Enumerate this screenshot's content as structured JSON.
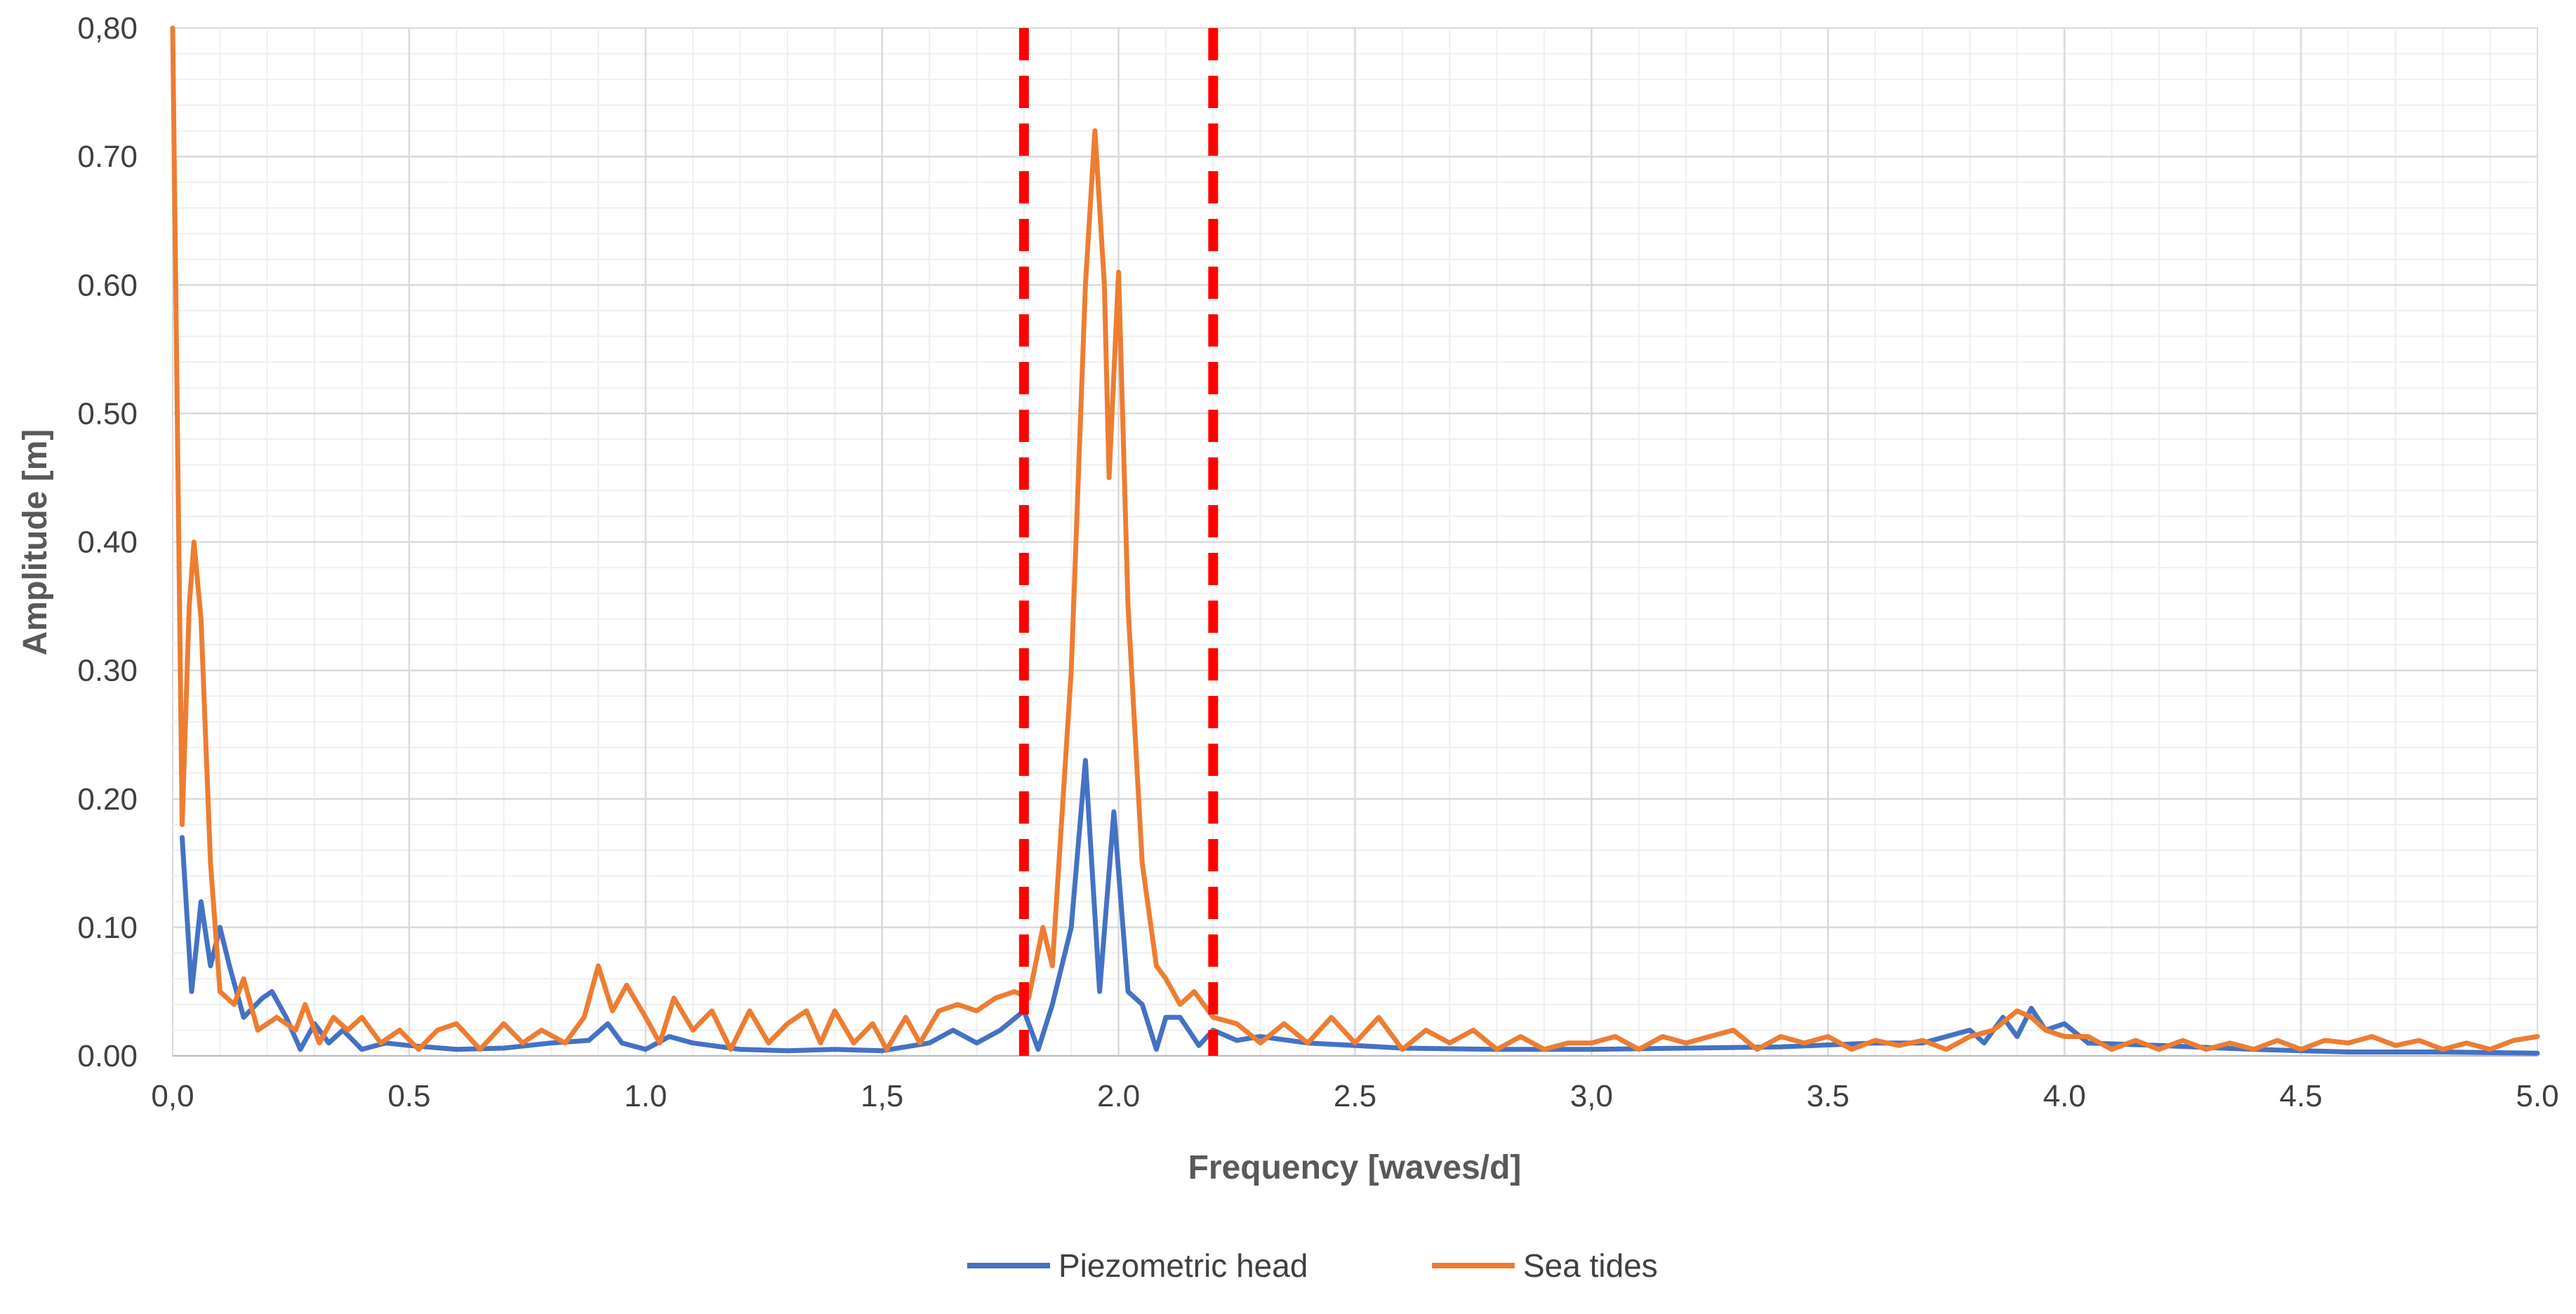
{
  "chart_data": {
    "type": "line",
    "title": "",
    "xlabel": "Frequency [waves/d]",
    "ylabel": "Amplitude [m]",
    "xlim": [
      0,
      5
    ],
    "ylim": [
      0,
      0.8
    ],
    "x_ticks": [
      "0,0",
      "0.5",
      "1.0",
      "1,5",
      "2.0",
      "2.5",
      "3,0",
      "3.5",
      "4.0",
      "4.5",
      "5.0"
    ],
    "y_ticks": [
      "0.00",
      "0.10",
      "0.20",
      "0.30",
      "0.40",
      "0.50",
      "0.60",
      "0.70",
      "0,80"
    ],
    "grid": true,
    "legend_position": "bottom",
    "reference_lines": {
      "x": [
        1.8,
        2.2
      ],
      "style": "dashed",
      "color": "#ff0000"
    },
    "series": [
      {
        "name": "Piezometric head",
        "color": "#4472c4",
        "points": [
          [
            0.02,
            0.17
          ],
          [
            0.04,
            0.05
          ],
          [
            0.06,
            0.12
          ],
          [
            0.08,
            0.07
          ],
          [
            0.1,
            0.1
          ],
          [
            0.12,
            0.07
          ],
          [
            0.15,
            0.03
          ],
          [
            0.19,
            0.045
          ],
          [
            0.21,
            0.05
          ],
          [
            0.24,
            0.03
          ],
          [
            0.27,
            0.005
          ],
          [
            0.3,
            0.025
          ],
          [
            0.33,
            0.01
          ],
          [
            0.36,
            0.02
          ],
          [
            0.4,
            0.005
          ],
          [
            0.45,
            0.01
          ],
          [
            0.5,
            0.008
          ],
          [
            0.6,
            0.005
          ],
          [
            0.7,
            0.006
          ],
          [
            0.8,
            0.01
          ],
          [
            0.88,
            0.012
          ],
          [
            0.92,
            0.025
          ],
          [
            0.95,
            0.01
          ],
          [
            1.0,
            0.005
          ],
          [
            1.05,
            0.015
          ],
          [
            1.1,
            0.01
          ],
          [
            1.2,
            0.005
          ],
          [
            1.3,
            0.004
          ],
          [
            1.4,
            0.005
          ],
          [
            1.5,
            0.004
          ],
          [
            1.6,
            0.01
          ],
          [
            1.65,
            0.02
          ],
          [
            1.7,
            0.01
          ],
          [
            1.75,
            0.02
          ],
          [
            1.8,
            0.035
          ],
          [
            1.83,
            0.005
          ],
          [
            1.86,
            0.04
          ],
          [
            1.9,
            0.1
          ],
          [
            1.93,
            0.23
          ],
          [
            1.96,
            0.05
          ],
          [
            1.99,
            0.19
          ],
          [
            2.02,
            0.05
          ],
          [
            2.05,
            0.04
          ],
          [
            2.08,
            0.005
          ],
          [
            2.1,
            0.03
          ],
          [
            2.13,
            0.03
          ],
          [
            2.17,
            0.008
          ],
          [
            2.2,
            0.02
          ],
          [
            2.25,
            0.012
          ],
          [
            2.3,
            0.015
          ],
          [
            2.4,
            0.01
          ],
          [
            2.5,
            0.008
          ],
          [
            2.6,
            0.006
          ],
          [
            2.8,
            0.005
          ],
          [
            3.0,
            0.005
          ],
          [
            3.2,
            0.006
          ],
          [
            3.4,
            0.007
          ],
          [
            3.6,
            0.01
          ],
          [
            3.7,
            0.01
          ],
          [
            3.8,
            0.02
          ],
          [
            3.83,
            0.01
          ],
          [
            3.87,
            0.03
          ],
          [
            3.9,
            0.015
          ],
          [
            3.93,
            0.037
          ],
          [
            3.96,
            0.02
          ],
          [
            4.0,
            0.025
          ],
          [
            4.05,
            0.01
          ],
          [
            4.2,
            0.008
          ],
          [
            4.4,
            0.005
          ],
          [
            4.6,
            0.003
          ],
          [
            4.8,
            0.003
          ],
          [
            5.0,
            0.002
          ]
        ]
      },
      {
        "name": "Sea tides",
        "color": "#ed7d31",
        "points": [
          [
            0.0,
            0.8
          ],
          [
            0.02,
            0.18
          ],
          [
            0.035,
            0.35
          ],
          [
            0.045,
            0.4
          ],
          [
            0.06,
            0.34
          ],
          [
            0.08,
            0.15
          ],
          [
            0.1,
            0.05
          ],
          [
            0.13,
            0.04
          ],
          [
            0.15,
            0.06
          ],
          [
            0.18,
            0.02
          ],
          [
            0.22,
            0.03
          ],
          [
            0.26,
            0.02
          ],
          [
            0.28,
            0.04
          ],
          [
            0.31,
            0.01
          ],
          [
            0.34,
            0.03
          ],
          [
            0.37,
            0.02
          ],
          [
            0.4,
            0.03
          ],
          [
            0.44,
            0.01
          ],
          [
            0.48,
            0.02
          ],
          [
            0.52,
            0.005
          ],
          [
            0.56,
            0.02
          ],
          [
            0.6,
            0.025
          ],
          [
            0.65,
            0.005
          ],
          [
            0.7,
            0.025
          ],
          [
            0.74,
            0.01
          ],
          [
            0.78,
            0.02
          ],
          [
            0.83,
            0.01
          ],
          [
            0.87,
            0.03
          ],
          [
            0.9,
            0.07
          ],
          [
            0.93,
            0.035
          ],
          [
            0.96,
            0.055
          ],
          [
            1.0,
            0.03
          ],
          [
            1.03,
            0.01
          ],
          [
            1.06,
            0.045
          ],
          [
            1.1,
            0.02
          ],
          [
            1.14,
            0.035
          ],
          [
            1.18,
            0.005
          ],
          [
            1.22,
            0.035
          ],
          [
            1.26,
            0.01
          ],
          [
            1.3,
            0.025
          ],
          [
            1.34,
            0.035
          ],
          [
            1.37,
            0.01
          ],
          [
            1.4,
            0.035
          ],
          [
            1.44,
            0.01
          ],
          [
            1.48,
            0.025
          ],
          [
            1.51,
            0.005
          ],
          [
            1.55,
            0.03
          ],
          [
            1.58,
            0.01
          ],
          [
            1.62,
            0.035
          ],
          [
            1.66,
            0.04
          ],
          [
            1.7,
            0.035
          ],
          [
            1.74,
            0.045
          ],
          [
            1.78,
            0.05
          ],
          [
            1.81,
            0.045
          ],
          [
            1.84,
            0.1
          ],
          [
            1.86,
            0.07
          ],
          [
            1.9,
            0.3
          ],
          [
            1.93,
            0.6
          ],
          [
            1.95,
            0.72
          ],
          [
            1.97,
            0.6
          ],
          [
            1.98,
            0.45
          ],
          [
            2.0,
            0.61
          ],
          [
            2.02,
            0.35
          ],
          [
            2.05,
            0.15
          ],
          [
            2.08,
            0.07
          ],
          [
            2.1,
            0.06
          ],
          [
            2.13,
            0.04
          ],
          [
            2.16,
            0.05
          ],
          [
            2.2,
            0.03
          ],
          [
            2.25,
            0.025
          ],
          [
            2.3,
            0.01
          ],
          [
            2.35,
            0.025
          ],
          [
            2.4,
            0.01
          ],
          [
            2.45,
            0.03
          ],
          [
            2.5,
            0.01
          ],
          [
            2.55,
            0.03
          ],
          [
            2.6,
            0.005
          ],
          [
            2.65,
            0.02
          ],
          [
            2.7,
            0.01
          ],
          [
            2.75,
            0.02
          ],
          [
            2.8,
            0.005
          ],
          [
            2.85,
            0.015
          ],
          [
            2.9,
            0.005
          ],
          [
            2.95,
            0.01
          ],
          [
            3.0,
            0.01
          ],
          [
            3.05,
            0.015
          ],
          [
            3.1,
            0.005
          ],
          [
            3.15,
            0.015
          ],
          [
            3.2,
            0.01
          ],
          [
            3.25,
            0.015
          ],
          [
            3.3,
            0.02
          ],
          [
            3.35,
            0.005
          ],
          [
            3.4,
            0.015
          ],
          [
            3.45,
            0.01
          ],
          [
            3.5,
            0.015
          ],
          [
            3.55,
            0.005
          ],
          [
            3.6,
            0.012
          ],
          [
            3.65,
            0.008
          ],
          [
            3.7,
            0.012
          ],
          [
            3.75,
            0.005
          ],
          [
            3.8,
            0.015
          ],
          [
            3.85,
            0.02
          ],
          [
            3.9,
            0.035
          ],
          [
            3.93,
            0.03
          ],
          [
            3.96,
            0.02
          ],
          [
            4.0,
            0.015
          ],
          [
            4.05,
            0.015
          ],
          [
            4.1,
            0.005
          ],
          [
            4.15,
            0.012
          ],
          [
            4.2,
            0.005
          ],
          [
            4.25,
            0.012
          ],
          [
            4.3,
            0.005
          ],
          [
            4.35,
            0.01
          ],
          [
            4.4,
            0.005
          ],
          [
            4.45,
            0.012
          ],
          [
            4.5,
            0.005
          ],
          [
            4.55,
            0.012
          ],
          [
            4.6,
            0.01
          ],
          [
            4.65,
            0.015
          ],
          [
            4.7,
            0.008
          ],
          [
            4.75,
            0.012
          ],
          [
            4.8,
            0.005
          ],
          [
            4.85,
            0.01
          ],
          [
            4.9,
            0.005
          ],
          [
            4.95,
            0.012
          ],
          [
            5.0,
            0.015
          ]
        ]
      }
    ]
  }
}
